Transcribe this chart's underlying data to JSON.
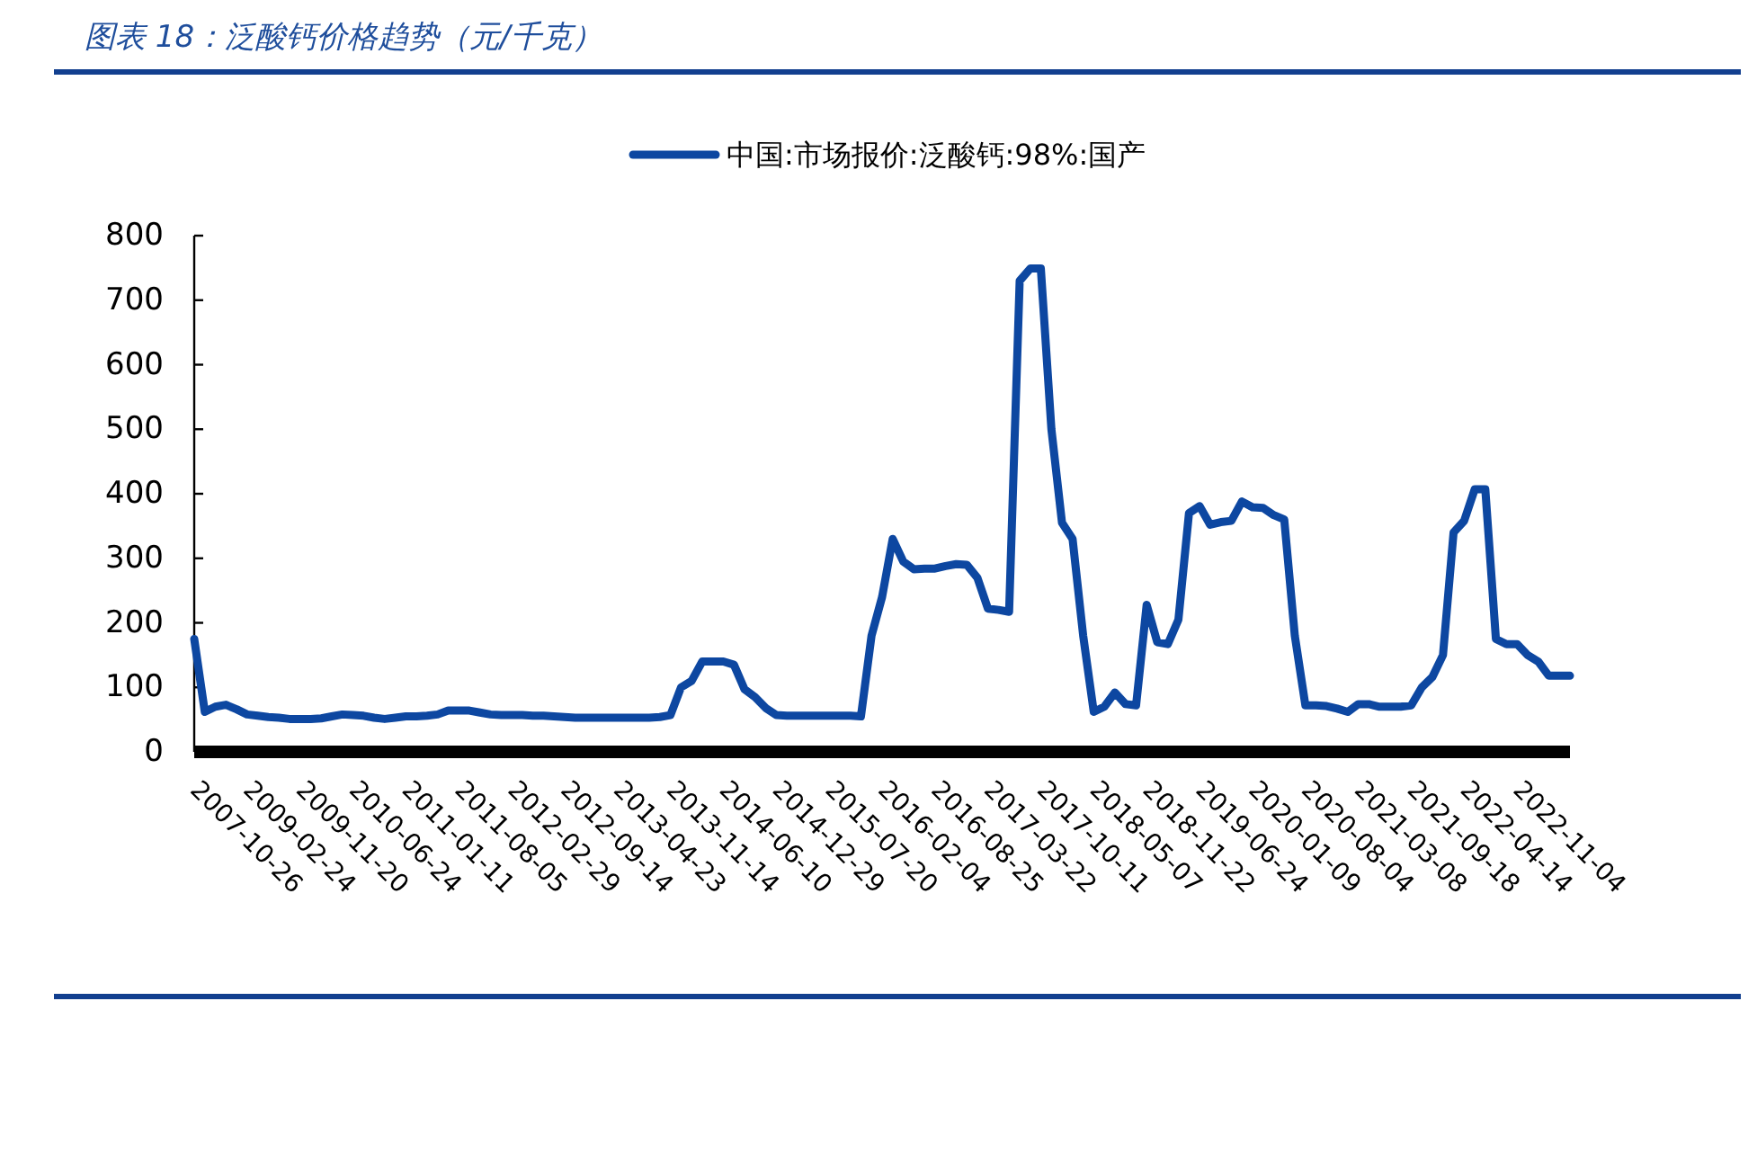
{
  "chart_data": {
    "type": "line",
    "title": "图表 18：泛酸钙价格趋势（元/千克）",
    "categories": [
      "2007-10-26",
      null,
      null,
      null,
      null,
      "2009-02-24",
      null,
      null,
      null,
      null,
      "2009-11-20",
      null,
      null,
      null,
      null,
      "2010-06-24",
      null,
      null,
      null,
      null,
      "2011-01-11",
      null,
      null,
      null,
      null,
      "2011-08-05",
      null,
      null,
      null,
      null,
      "2012-02-29",
      null,
      null,
      null,
      null,
      "2012-09-14",
      null,
      null,
      null,
      null,
      "2013-04-23",
      null,
      null,
      null,
      null,
      "2013-11-14",
      null,
      null,
      null,
      null,
      "2014-06-10",
      null,
      null,
      null,
      null,
      "2014-12-29",
      null,
      null,
      null,
      null,
      "2015-07-20",
      null,
      null,
      null,
      null,
      "2016-02-04",
      null,
      null,
      null,
      null,
      "2016-08-25",
      null,
      null,
      null,
      null,
      "2017-03-22",
      null,
      null,
      null,
      null,
      "2017-10-11",
      null,
      null,
      null,
      null,
      "2018-05-07",
      null,
      null,
      null,
      null,
      "2018-11-22",
      null,
      null,
      null,
      null,
      "2019-06-24",
      null,
      null,
      null,
      null,
      "2020-01-09",
      null,
      null,
      null,
      null,
      "2020-08-04",
      null,
      null,
      null,
      null,
      "2021-03-08",
      null,
      null,
      null,
      null,
      "2021-09-18",
      null,
      null,
      null,
      null,
      "2022-04-14",
      null,
      null,
      null,
      null,
      "2022-11-04",
      null,
      null,
      null,
      null,
      null
    ],
    "series": [
      {
        "name": "中国:市场报价:泛酸钙:98%:国产",
        "color": "#0d47a1",
        "values": [
          175,
          62,
          70,
          73,
          66,
          58,
          56,
          54,
          53,
          51,
          51,
          51,
          52,
          55,
          58,
          57,
          56,
          53,
          51,
          53,
          55,
          55,
          56,
          58,
          64,
          64,
          64,
          61,
          58,
          57,
          57,
          57,
          56,
          56,
          55,
          54,
          53,
          53,
          53,
          53,
          53,
          53,
          53,
          53,
          54,
          57,
          100,
          110,
          140,
          140,
          140,
          135,
          97,
          85,
          68,
          57,
          56,
          56,
          56,
          56,
          56,
          56,
          56,
          55,
          180,
          240,
          330,
          295,
          283,
          284,
          284,
          288,
          291,
          290,
          270,
          222,
          220,
          217,
          730,
          749,
          749,
          500,
          355,
          330,
          180,
          62,
          70,
          92,
          74,
          72,
          228,
          170,
          167,
          205,
          370,
          381,
          352,
          356,
          358,
          388,
          379,
          378,
          367,
          360,
          180,
          72,
          72,
          71,
          67,
          62,
          74,
          74,
          70,
          70,
          70,
          72,
          100,
          116,
          150,
          340,
          358,
          407,
          407,
          175,
          167,
          167,
          150,
          140,
          118,
          118,
          118
        ]
      }
    ],
    "ylim": [
      0,
      800
    ],
    "yticks": [
      0,
      100,
      200,
      300,
      400,
      500,
      600,
      700,
      800
    ],
    "legend": "top"
  }
}
